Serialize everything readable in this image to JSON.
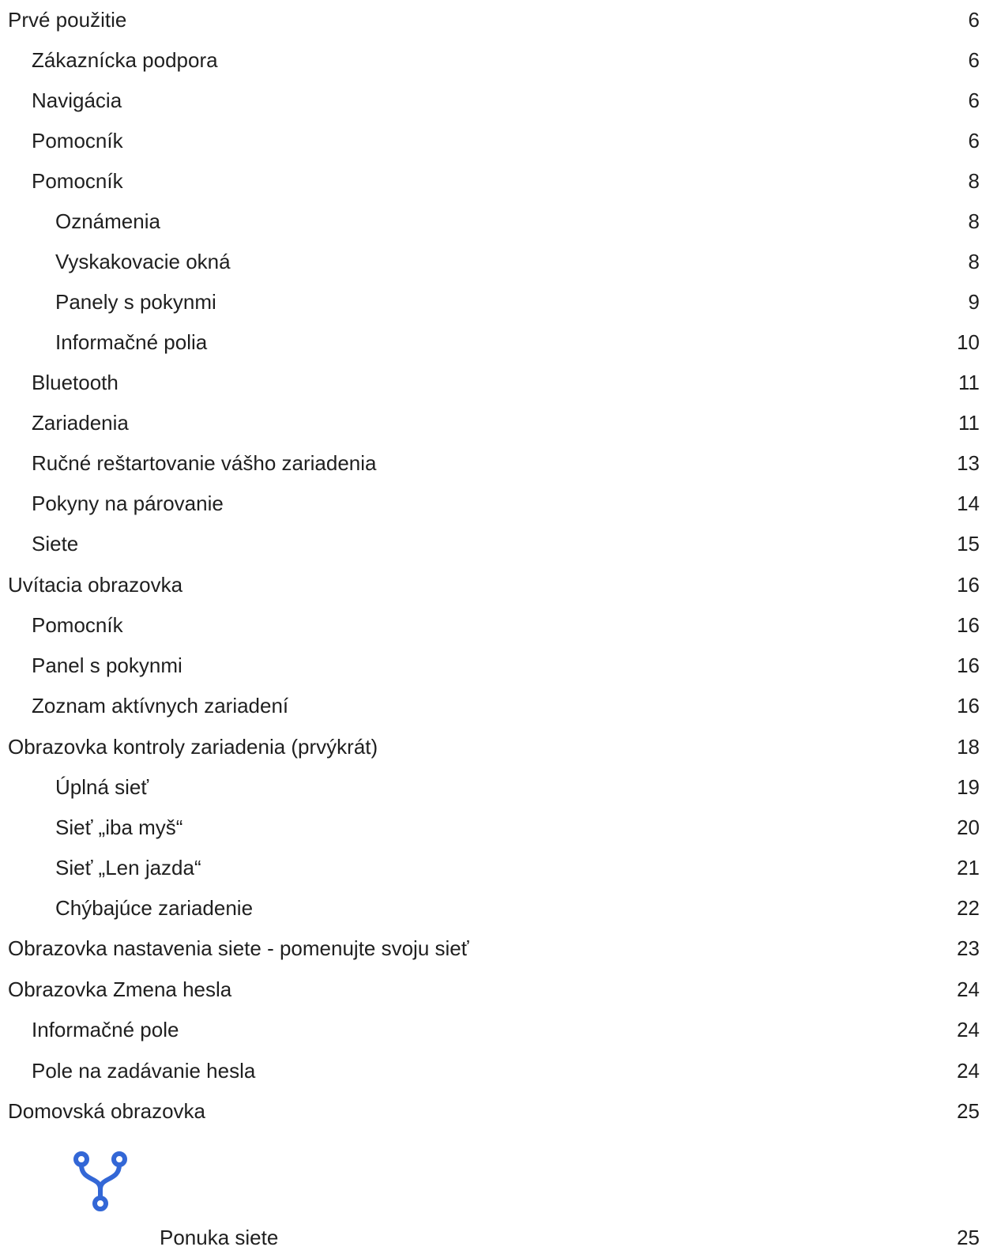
{
  "toc": [
    {
      "label": "Prvé použitie",
      "page": "6",
      "level": 1
    },
    {
      "label": "Zákaznícka podpora",
      "page": "6",
      "level": 2
    },
    {
      "label": "Navigácia",
      "page": "6",
      "level": 2
    },
    {
      "label": "Pomocník",
      "page": "6",
      "level": 2
    },
    {
      "label": "Pomocník",
      "page": "8",
      "level": 2
    },
    {
      "label": "Oznámenia",
      "page": "8",
      "level": 3
    },
    {
      "label": "Vyskakovacie okná",
      "page": "8",
      "level": 3
    },
    {
      "label": "Panely s pokynmi",
      "page": "9",
      "level": 3
    },
    {
      "label": "Informačné polia",
      "page": "10",
      "level": 3
    },
    {
      "label": "Bluetooth",
      "page": "11",
      "level": 2
    },
    {
      "label": "Zariadenia",
      "page": "11",
      "level": 2
    },
    {
      "label": "Ručné reštartovanie vášho zariadenia",
      "page": "13",
      "level": 2
    },
    {
      "label": "Pokyny na párovanie",
      "page": "14",
      "level": 2
    },
    {
      "label": "Siete",
      "page": "15",
      "level": 2
    },
    {
      "label": "Uvítacia obrazovka",
      "page": "16",
      "level": 1
    },
    {
      "label": "Pomocník",
      "page": "16",
      "level": 2
    },
    {
      "label": "Panel s pokynmi",
      "page": "16",
      "level": 2
    },
    {
      "label": "Zoznam aktívnych zariadení",
      "page": "16",
      "level": 2
    },
    {
      "label": "Obrazovka kontroly zariadenia (prvýkrát)",
      "page": "18",
      "level": 1
    },
    {
      "label": "Úplná sieť",
      "page": "19",
      "level": 3
    },
    {
      "label": "Sieť „iba myš“",
      "page": "20",
      "level": 3
    },
    {
      "label": "Sieť „Len jazda“",
      "page": "21",
      "level": 3
    },
    {
      "label": "Chýbajúce zariadenie",
      "page": "22",
      "level": 3
    },
    {
      "label": "Obrazovka nastavenia siete - pomenujte svoju sieť",
      "page": "23",
      "level": 1
    },
    {
      "label": "Obrazovka Zmena hesla",
      "page": "24",
      "level": 1
    },
    {
      "label": "Informačné pole",
      "page": "24",
      "level": 2
    },
    {
      "label": "Pole na zadávanie hesla",
      "page": "24",
      "level": 2
    },
    {
      "label": "Domovská obrazovka",
      "page": "25",
      "level": 1
    }
  ],
  "network_menu": {
    "icon": "network-fork-icon",
    "icon_color": "#3367d6",
    "label": "Ponuka siete",
    "page": "25"
  }
}
